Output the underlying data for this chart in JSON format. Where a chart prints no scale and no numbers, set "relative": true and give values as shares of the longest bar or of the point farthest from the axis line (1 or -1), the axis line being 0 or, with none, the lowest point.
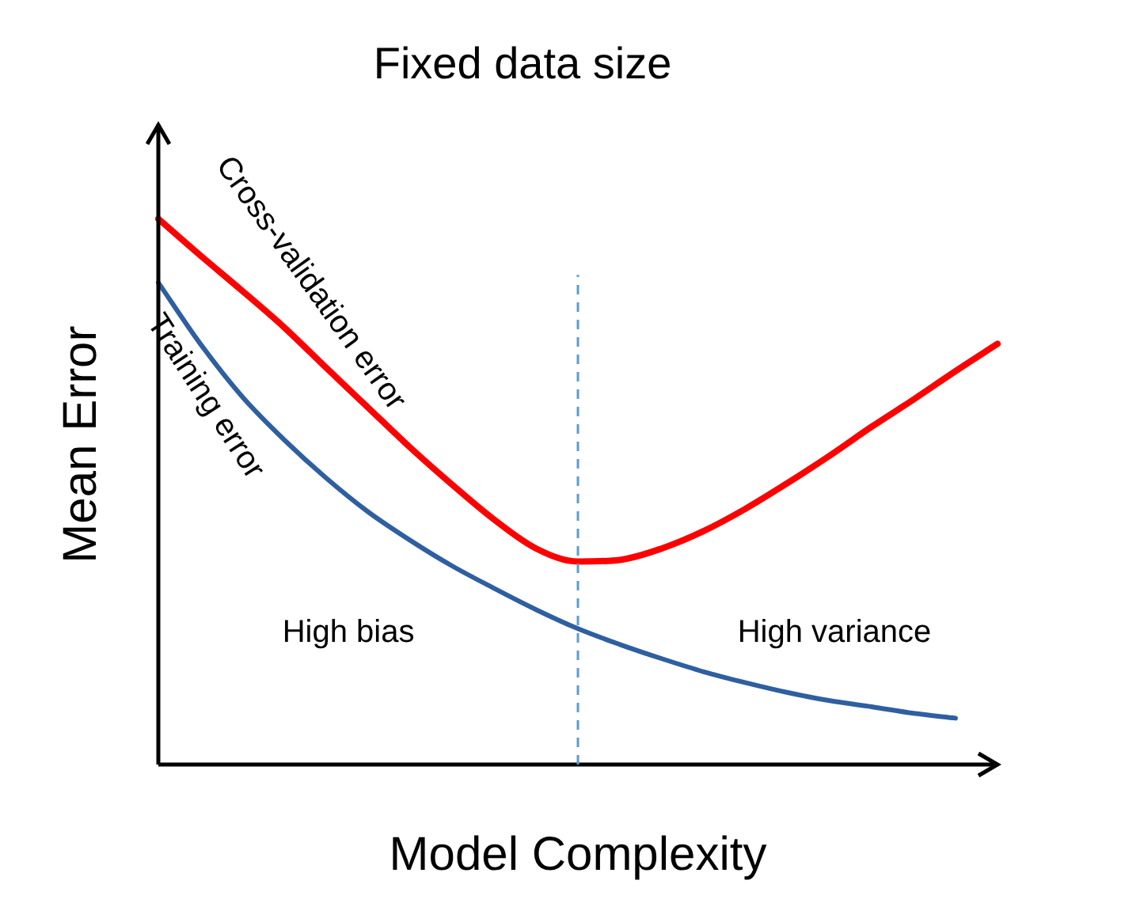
{
  "chart_data": {
    "type": "line",
    "title": "Fixed data size",
    "xlabel": "Model Complexity",
    "ylabel": "Mean Error",
    "relative": true,
    "legend": false,
    "grid": false,
    "marker": "none",
    "line_style": "solid",
    "categories": [
      null,
      null,
      null,
      null,
      null,
      null,
      null,
      null,
      null,
      null,
      null,
      null,
      null,
      null,
      null,
      null,
      null,
      null,
      null,
      null,
      null
    ],
    "series": [
      {
        "name": "Cross-validation error",
        "color": "#ff0000",
        "values": [
          1.0,
          0.933,
          0.868,
          0.801,
          0.727,
          0.654,
          0.581,
          0.513,
          0.449,
          0.396,
          0.372,
          0.375,
          0.396,
          0.428,
          0.469,
          0.516,
          0.566,
          0.619,
          0.669,
          0.721,
          0.771
        ]
      },
      {
        "name": "Training error",
        "color": "#2e5fa0",
        "values": [
          0.883,
          0.771,
          0.674,
          0.595,
          0.525,
          0.463,
          0.411,
          0.364,
          0.323,
          0.284,
          0.249,
          0.22,
          0.194,
          0.17,
          0.15,
          0.132,
          0.117,
          0.106,
          0.094,
          0.085,
          null
        ]
      }
    ],
    "annotations": [
      "High bias",
      "High variance"
    ]
  }
}
